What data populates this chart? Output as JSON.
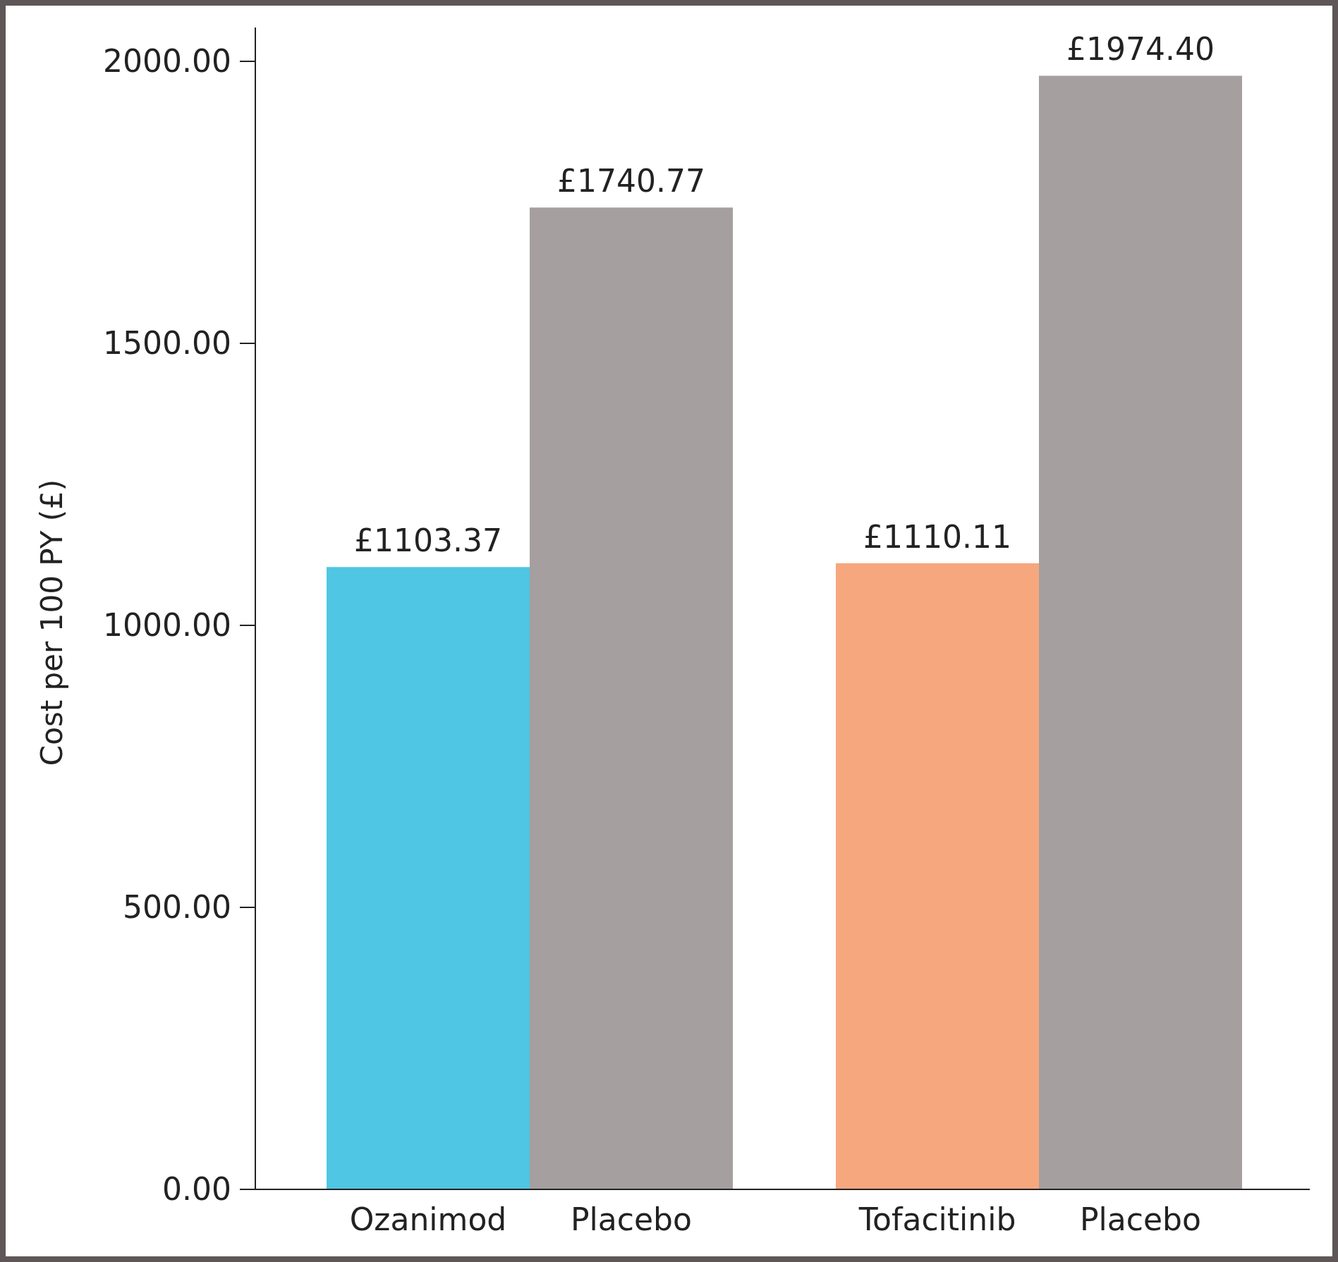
{
  "chart_data": {
    "type": "bar",
    "ylabel": "Cost per 100 PY (£)",
    "categories": [
      "Ozanimod",
      "Placebo",
      "Tofacitinib",
      "Placebo"
    ],
    "values": [
      1103.37,
      1740.77,
      1110.11,
      1974.4
    ],
    "colors": [
      "#4fc6e3",
      "#a59f9f",
      "#f7a77e",
      "#a59f9f"
    ],
    "value_labels": [
      "£1103.37",
      "£1740.77",
      "£1110.11",
      "£1974.40"
    ],
    "ylim": [
      0,
      2060
    ],
    "yticks": [
      {
        "value": 0,
        "label": "0.00"
      },
      {
        "value": 500,
        "label": "500.00"
      },
      {
        "value": 1000,
        "label": "1000.00"
      },
      {
        "value": 1500,
        "label": "1500.00"
      },
      {
        "value": 2000,
        "label": "2000.00"
      }
    ],
    "grid": false
  }
}
